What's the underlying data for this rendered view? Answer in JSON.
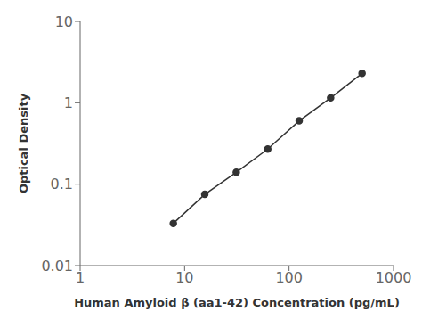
{
  "chart_data": {
    "type": "line",
    "x": [
      7.8,
      15.6,
      31.25,
      62.5,
      125,
      250,
      500
    ],
    "values": [
      0.033,
      0.075,
      0.14,
      0.27,
      0.6,
      1.15,
      2.3
    ],
    "xlabel": "Human Amyloid β (aa1-42) Concentration (pg/mL)",
    "ylabel": "Optical Density",
    "xlim": [
      1,
      1000
    ],
    "ylim": [
      0.01,
      10
    ],
    "xticks": [
      1,
      10,
      100,
      1000
    ],
    "yticks": [
      0.01,
      0.1,
      1,
      10
    ],
    "log": true,
    "grid": false,
    "color": "#333333",
    "marker": "circle"
  }
}
